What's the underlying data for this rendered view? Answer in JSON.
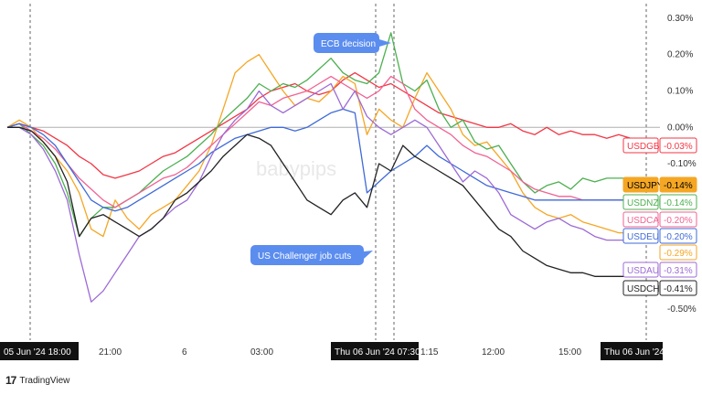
{
  "chart_data": {
    "type": "line",
    "y_unit": "%",
    "ylim": [
      -0.55,
      0.32
    ],
    "y_ticks": [
      "0.30%",
      "0.20%",
      "0.10%",
      "0.00%",
      "-0.10%",
      "-0.50%"
    ],
    "x_ticks": [
      "05 Jun '24  18:00",
      "21:00",
      "6",
      "03:00",
      "Thu 06 Jun '24  07:30",
      "1:15",
      "12:00",
      "15:00",
      "Thu 06 Jun '24"
    ],
    "zero_line": true,
    "legend": "right-axis labels",
    "series": [
      {
        "name": "USDGBP",
        "color": "#f23645",
        "last": "-0.03%",
        "values": [
          0.0,
          0.01,
          0.0,
          -0.01,
          -0.03,
          -0.05,
          -0.08,
          -0.1,
          -0.13,
          -0.14,
          -0.13,
          -0.12,
          -0.1,
          -0.08,
          -0.07,
          -0.05,
          -0.03,
          -0.01,
          0.01,
          0.03,
          0.05,
          0.08,
          0.1,
          0.11,
          0.12,
          0.1,
          0.09,
          0.1,
          0.13,
          0.15,
          0.13,
          0.11,
          0.12,
          0.1,
          0.08,
          0.06,
          0.04,
          0.03,
          0.02,
          0.01,
          0.0,
          0.0,
          0.01,
          -0.01,
          -0.02,
          0.0,
          -0.02,
          -0.01,
          -0.02,
          -0.02,
          -0.03,
          -0.02,
          -0.03
        ]
      },
      {
        "name": "USDJPY",
        "color": "#f5a623",
        "last": "-0.14%",
        "values": [
          0.0,
          0.02,
          0.0,
          -0.04,
          -0.08,
          -0.12,
          -0.18,
          -0.28,
          -0.3,
          -0.2,
          -0.25,
          -0.28,
          -0.24,
          -0.22,
          -0.2,
          -0.16,
          -0.12,
          -0.05,
          0.05,
          0.15,
          0.18,
          0.2,
          0.15,
          0.1,
          0.06,
          0.08,
          0.07,
          0.1,
          0.14,
          0.12,
          -0.02,
          0.05,
          0.02,
          0.0,
          0.08,
          0.15,
          0.1,
          0.05,
          -0.02,
          -0.05,
          -0.04,
          -0.08,
          -0.12,
          -0.18,
          -0.22,
          -0.24,
          -0.25,
          -0.24,
          -0.26,
          -0.27,
          -0.28,
          -0.29,
          -0.29
        ]
      },
      {
        "name": "USDNZD",
        "color": "#4caf50",
        "last": "-0.14%",
        "values": [
          0.0,
          0.01,
          -0.02,
          -0.05,
          -0.1,
          -0.18,
          -0.3,
          -0.25,
          -0.22,
          -0.22,
          -0.2,
          -0.18,
          -0.15,
          -0.12,
          -0.1,
          -0.08,
          -0.05,
          -0.02,
          0.02,
          0.05,
          0.08,
          0.12,
          0.1,
          0.12,
          0.11,
          0.13,
          0.16,
          0.19,
          0.15,
          0.13,
          0.12,
          0.15,
          0.26,
          0.12,
          0.1,
          0.13,
          0.05,
          0.0,
          0.02,
          -0.04,
          -0.06,
          -0.05,
          -0.1,
          -0.15,
          -0.18,
          -0.16,
          -0.15,
          -0.17,
          -0.14,
          -0.15,
          -0.14,
          -0.14,
          -0.14
        ]
      },
      {
        "name": "USDCAD",
        "color": "#f06292",
        "last": "-0.20%",
        "values": [
          0.0,
          0.01,
          -0.01,
          -0.03,
          -0.06,
          -0.1,
          -0.14,
          -0.17,
          -0.2,
          -0.22,
          -0.2,
          -0.18,
          -0.16,
          -0.14,
          -0.13,
          -0.11,
          -0.08,
          -0.05,
          -0.02,
          0.01,
          0.04,
          0.07,
          0.06,
          0.08,
          0.09,
          0.1,
          0.12,
          0.14,
          0.12,
          0.1,
          0.08,
          0.1,
          0.14,
          0.12,
          0.05,
          0.02,
          0.0,
          -0.02,
          -0.05,
          -0.07,
          -0.08,
          -0.1,
          -0.12,
          -0.15,
          -0.17,
          -0.18,
          -0.19,
          -0.19,
          -0.2,
          -0.2,
          -0.2,
          -0.2,
          -0.2
        ]
      },
      {
        "name": "USDEUR",
        "color": "#3f6ad8",
        "last": "-0.20%",
        "values": [
          0.0,
          0.01,
          0.0,
          -0.02,
          -0.05,
          -0.1,
          -0.15,
          -0.2,
          -0.22,
          -0.23,
          -0.22,
          -0.2,
          -0.18,
          -0.16,
          -0.14,
          -0.12,
          -0.1,
          -0.07,
          -0.05,
          -0.03,
          -0.02,
          -0.01,
          0.0,
          0.0,
          -0.01,
          0.0,
          0.02,
          0.04,
          0.05,
          0.04,
          -0.18,
          -0.15,
          -0.12,
          -0.1,
          -0.08,
          -0.05,
          -0.08,
          -0.1,
          -0.12,
          -0.14,
          -0.16,
          -0.17,
          -0.18,
          -0.19,
          -0.2,
          -0.2,
          -0.2,
          -0.2,
          -0.2,
          -0.2,
          -0.2,
          -0.2,
          -0.2
        ]
      },
      {
        "name": "USDAUD",
        "color": "#9c6ad6",
        "last": "-0.31%",
        "values": [
          0.0,
          0.0,
          -0.02,
          -0.06,
          -0.12,
          -0.2,
          -0.35,
          -0.48,
          -0.45,
          -0.4,
          -0.35,
          -0.3,
          -0.28,
          -0.25,
          -0.22,
          -0.2,
          -0.15,
          -0.08,
          -0.02,
          0.02,
          0.05,
          0.1,
          0.06,
          0.04,
          0.06,
          0.08,
          0.1,
          0.12,
          0.05,
          0.1,
          0.03,
          0.0,
          -0.02,
          0.0,
          0.02,
          0.0,
          -0.05,
          -0.1,
          -0.15,
          -0.12,
          -0.14,
          -0.18,
          -0.24,
          -0.26,
          -0.28,
          -0.26,
          -0.25,
          -0.27,
          -0.28,
          -0.3,
          -0.31,
          -0.31,
          -0.31
        ]
      },
      {
        "name": "USDCHF",
        "color": "#222222",
        "last": "-0.41%",
        "values": [
          0.0,
          0.0,
          -0.01,
          -0.04,
          -0.08,
          -0.15,
          -0.3,
          -0.25,
          -0.24,
          -0.26,
          -0.28,
          -0.3,
          -0.28,
          -0.25,
          -0.2,
          -0.18,
          -0.15,
          -0.12,
          -0.08,
          -0.05,
          -0.02,
          -0.03,
          -0.05,
          -0.1,
          -0.15,
          -0.2,
          -0.22,
          -0.24,
          -0.2,
          -0.18,
          -0.22,
          -0.1,
          -0.12,
          -0.05,
          -0.08,
          -0.1,
          -0.12,
          -0.14,
          -0.16,
          -0.2,
          -0.24,
          -0.28,
          -0.3,
          -0.34,
          -0.36,
          -0.38,
          -0.39,
          -0.4,
          -0.4,
          -0.41,
          -0.41,
          -0.41,
          -0.41
        ]
      }
    ],
    "event_index": 30,
    "annotations": [
      {
        "text": "ECB decision",
        "target": 29
      },
      {
        "text": "US Challenger job cuts",
        "target": 30
      }
    ],
    "watermark": "babypips"
  },
  "branding": {
    "name": "TradingView"
  }
}
